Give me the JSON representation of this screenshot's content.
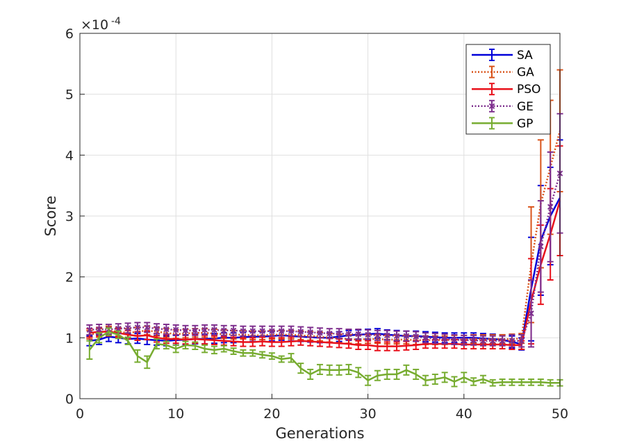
{
  "chart_data": {
    "type": "line",
    "xlabel": "Generations",
    "ylabel": "Score",
    "exponent_label": "×10",
    "exponent_power": "-4",
    "xlim": [
      0,
      50
    ],
    "ylim": [
      0,
      6
    ],
    "xticks": [
      0,
      10,
      20,
      30,
      40,
      50
    ],
    "yticks": [
      0,
      1,
      2,
      3,
      4,
      5,
      6
    ],
    "grid": true,
    "legend_position": "top-right",
    "x": [
      1,
      2,
      3,
      4,
      5,
      6,
      7,
      8,
      9,
      10,
      11,
      12,
      13,
      14,
      15,
      16,
      17,
      18,
      19,
      20,
      21,
      22,
      23,
      24,
      25,
      26,
      27,
      28,
      29,
      30,
      31,
      32,
      33,
      34,
      35,
      36,
      37,
      38,
      39,
      40,
      41,
      42,
      43,
      44,
      45,
      46,
      47,
      48,
      49,
      50
    ],
    "series": [
      {
        "name": "SA",
        "color": "#0000d9",
        "dash": "solid",
        "marker": "none",
        "values": [
          0.95,
          0.97,
          1.02,
          1.0,
          0.98,
          0.99,
          0.97,
          0.96,
          0.95,
          0.96,
          0.97,
          0.98,
          0.98,
          0.99,
          1.0,
          1.0,
          1.01,
          1.02,
          1.02,
          1.03,
          1.04,
          1.03,
          1.02,
          1.01,
          1.0,
          1.0,
          1.02,
          1.04,
          1.05,
          1.06,
          1.07,
          1.05,
          1.04,
          1.03,
          1.03,
          1.02,
          1.01,
          1.0,
          1.0,
          1.0,
          1.0,
          0.99,
          0.98,
          0.97,
          0.93,
          0.9,
          1.8,
          2.6,
          3.0,
          3.3
        ],
        "err": [
          0.08,
          0.08,
          0.08,
          0.08,
          0.08,
          0.08,
          0.08,
          0.08,
          0.08,
          0.08,
          0.08,
          0.08,
          0.08,
          0.08,
          0.08,
          0.08,
          0.08,
          0.08,
          0.08,
          0.08,
          0.08,
          0.08,
          0.08,
          0.08,
          0.08,
          0.08,
          0.08,
          0.08,
          0.08,
          0.08,
          0.08,
          0.08,
          0.08,
          0.08,
          0.08,
          0.08,
          0.08,
          0.08,
          0.08,
          0.08,
          0.08,
          0.08,
          0.08,
          0.08,
          0.1,
          0.1,
          0.85,
          0.9,
          0.8,
          0.95
        ]
      },
      {
        "name": "GA",
        "color": "#d95319",
        "dash": "dotted",
        "marker": "none",
        "values": [
          1.05,
          1.08,
          1.12,
          1.1,
          1.08,
          1.1,
          1.12,
          1.1,
          1.08,
          1.06,
          1.07,
          1.08,
          1.08,
          1.07,
          1.06,
          1.05,
          1.05,
          1.04,
          1.04,
          1.05,
          1.05,
          1.05,
          1.04,
          1.03,
          1.02,
          1.0,
          0.99,
          0.98,
          0.97,
          0.98,
          0.98,
          0.97,
          0.97,
          0.97,
          0.96,
          0.96,
          0.96,
          0.96,
          0.97,
          0.97,
          0.98,
          0.98,
          0.98,
          0.98,
          0.98,
          0.99,
          2.2,
          3.2,
          3.8,
          4.4
        ],
        "err": [
          0.07,
          0.07,
          0.07,
          0.07,
          0.07,
          0.07,
          0.07,
          0.07,
          0.07,
          0.07,
          0.07,
          0.07,
          0.07,
          0.07,
          0.07,
          0.07,
          0.07,
          0.07,
          0.07,
          0.07,
          0.07,
          0.07,
          0.07,
          0.07,
          0.07,
          0.07,
          0.07,
          0.07,
          0.07,
          0.07,
          0.07,
          0.07,
          0.07,
          0.07,
          0.07,
          0.07,
          0.07,
          0.07,
          0.07,
          0.07,
          0.07,
          0.07,
          0.07,
          0.07,
          0.08,
          0.08,
          0.95,
          1.05,
          1.1,
          1.0
        ]
      },
      {
        "name": "PSO",
        "color": "#e8111b",
        "dash": "solid",
        "marker": "none",
        "values": [
          1.08,
          1.1,
          1.1,
          1.08,
          1.05,
          1.03,
          1.04,
          1.0,
          0.98,
          0.98,
          0.97,
          0.98,
          0.97,
          0.96,
          0.95,
          0.94,
          0.93,
          0.93,
          0.94,
          0.93,
          0.93,
          0.94,
          0.95,
          0.94,
          0.93,
          0.92,
          0.91,
          0.9,
          0.88,
          0.88,
          0.86,
          0.86,
          0.86,
          0.87,
          0.88,
          0.9,
          0.9,
          0.9,
          0.9,
          0.89,
          0.89,
          0.89,
          0.89,
          0.89,
          0.88,
          0.88,
          1.6,
          2.2,
          2.7,
          3.25
        ],
        "err": [
          0.07,
          0.07,
          0.07,
          0.07,
          0.07,
          0.07,
          0.07,
          0.07,
          0.07,
          0.07,
          0.07,
          0.07,
          0.07,
          0.07,
          0.07,
          0.07,
          0.07,
          0.07,
          0.07,
          0.07,
          0.07,
          0.07,
          0.07,
          0.07,
          0.07,
          0.07,
          0.07,
          0.07,
          0.07,
          0.07,
          0.07,
          0.07,
          0.07,
          0.07,
          0.07,
          0.07,
          0.07,
          0.07,
          0.07,
          0.07,
          0.07,
          0.07,
          0.07,
          0.07,
          0.07,
          0.07,
          0.7,
          0.65,
          0.75,
          0.9
        ]
      },
      {
        "name": "GE",
        "color": "#7e2f8e",
        "dash": "dotted",
        "marker": "x",
        "values": [
          1.13,
          1.14,
          1.14,
          1.15,
          1.16,
          1.17,
          1.17,
          1.15,
          1.14,
          1.13,
          1.12,
          1.12,
          1.13,
          1.13,
          1.12,
          1.12,
          1.11,
          1.11,
          1.11,
          1.11,
          1.11,
          1.11,
          1.1,
          1.09,
          1.08,
          1.07,
          1.07,
          1.06,
          1.06,
          1.05,
          1.04,
          1.04,
          1.03,
          1.03,
          1.02,
          1.0,
          0.99,
          0.98,
          0.97,
          0.96,
          0.96,
          0.95,
          0.95,
          0.95,
          0.95,
          0.95,
          1.4,
          2.5,
          3.15,
          3.7
        ],
        "err": [
          0.08,
          0.08,
          0.08,
          0.08,
          0.08,
          0.08,
          0.08,
          0.08,
          0.08,
          0.08,
          0.08,
          0.08,
          0.08,
          0.08,
          0.08,
          0.08,
          0.08,
          0.08,
          0.08,
          0.08,
          0.08,
          0.08,
          0.08,
          0.08,
          0.08,
          0.08,
          0.08,
          0.08,
          0.08,
          0.08,
          0.08,
          0.08,
          0.08,
          0.08,
          0.08,
          0.08,
          0.08,
          0.08,
          0.08,
          0.08,
          0.08,
          0.08,
          0.08,
          0.08,
          0.1,
          0.1,
          0.55,
          0.75,
          0.9,
          0.98
        ]
      },
      {
        "name": "GP",
        "color": "#77ac30",
        "dash": "solid",
        "marker": "none",
        "values": [
          0.8,
          1.0,
          1.1,
          1.05,
          0.95,
          0.7,
          0.6,
          0.9,
          0.88,
          0.82,
          0.88,
          0.87,
          0.82,
          0.8,
          0.82,
          0.78,
          0.75,
          0.75,
          0.72,
          0.7,
          0.65,
          0.67,
          0.5,
          0.4,
          0.48,
          0.47,
          0.47,
          0.48,
          0.43,
          0.3,
          0.38,
          0.4,
          0.4,
          0.47,
          0.4,
          0.3,
          0.32,
          0.35,
          0.28,
          0.35,
          0.28,
          0.32,
          0.26,
          0.27,
          0.27,
          0.27,
          0.27,
          0.27,
          0.26,
          0.26
        ],
        "err": [
          0.15,
          0.08,
          0.06,
          0.06,
          0.06,
          0.1,
          0.1,
          0.08,
          0.06,
          0.06,
          0.06,
          0.06,
          0.06,
          0.06,
          0.05,
          0.05,
          0.05,
          0.05,
          0.05,
          0.05,
          0.05,
          0.07,
          0.08,
          0.08,
          0.08,
          0.08,
          0.08,
          0.08,
          0.08,
          0.08,
          0.08,
          0.08,
          0.08,
          0.08,
          0.08,
          0.08,
          0.08,
          0.08,
          0.08,
          0.08,
          0.06,
          0.06,
          0.05,
          0.05,
          0.05,
          0.05,
          0.05,
          0.05,
          0.05,
          0.05
        ]
      }
    ]
  }
}
